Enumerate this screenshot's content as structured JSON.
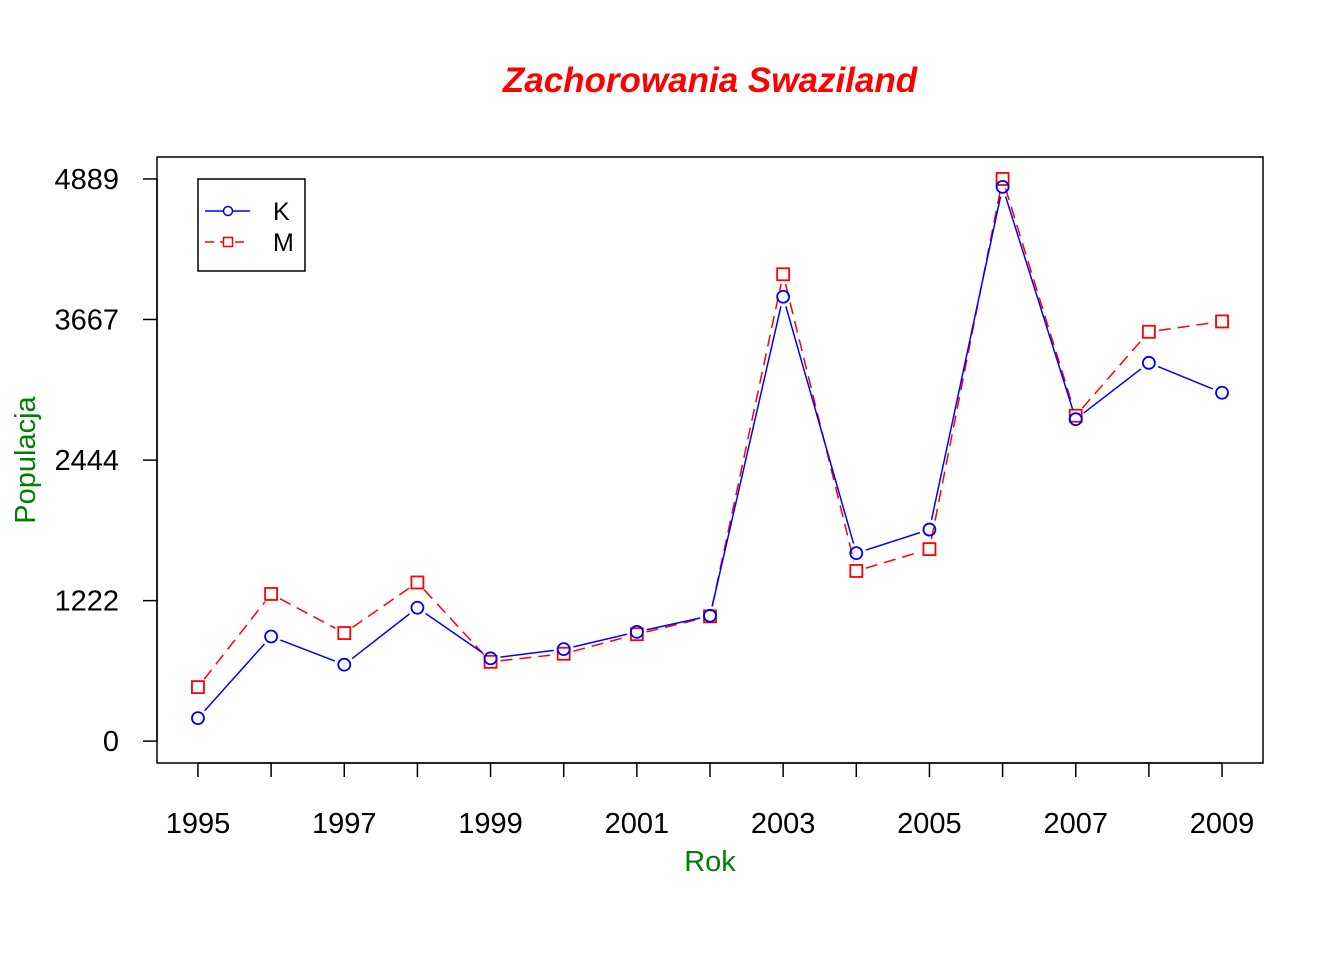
{
  "chart_data": {
    "type": "line",
    "title": "Zachorowania Swaziland",
    "xlabel": "Rok",
    "ylabel": "Populacja",
    "x": [
      1995,
      1996,
      1997,
      1998,
      1999,
      2000,
      2001,
      2002,
      2003,
      2004,
      2005,
      2006,
      2007,
      2008,
      2009
    ],
    "x_ticks": [
      1995,
      1997,
      1999,
      2001,
      2003,
      2005,
      2007,
      2009
    ],
    "x_tick_labels": [
      "1995",
      "1997",
      "1999",
      "2001",
      "2003",
      "2005",
      "2007",
      "2009"
    ],
    "y_ticks": [
      0,
      1222,
      2444,
      3667,
      4889
    ],
    "y_tick_labels": [
      "0",
      "1222",
      "2444",
      "3667",
      "4889"
    ],
    "xlim": [
      1994.44,
      2009.56
    ],
    "ylim": [
      -190,
      5080
    ],
    "grid": false,
    "legend_position": "top-left",
    "series": [
      {
        "name": "K",
        "color": "#0000ff",
        "line_style": "solid",
        "marker": "circle",
        "values": [
          200,
          910,
          665,
          1160,
          720,
          800,
          950,
          1090,
          3865,
          1635,
          1840,
          4820,
          2800,
          3290,
          3030
        ]
      },
      {
        "name": "M",
        "color": "#ff0000",
        "line_style": "dashed",
        "marker": "square",
        "values": [
          470,
          1280,
          940,
          1380,
          690,
          760,
          930,
          1085,
          4060,
          1480,
          1670,
          4889,
          2830,
          3560,
          3650
        ]
      }
    ],
    "title_color": "#ff0000",
    "axis_label_color": "#008000"
  }
}
